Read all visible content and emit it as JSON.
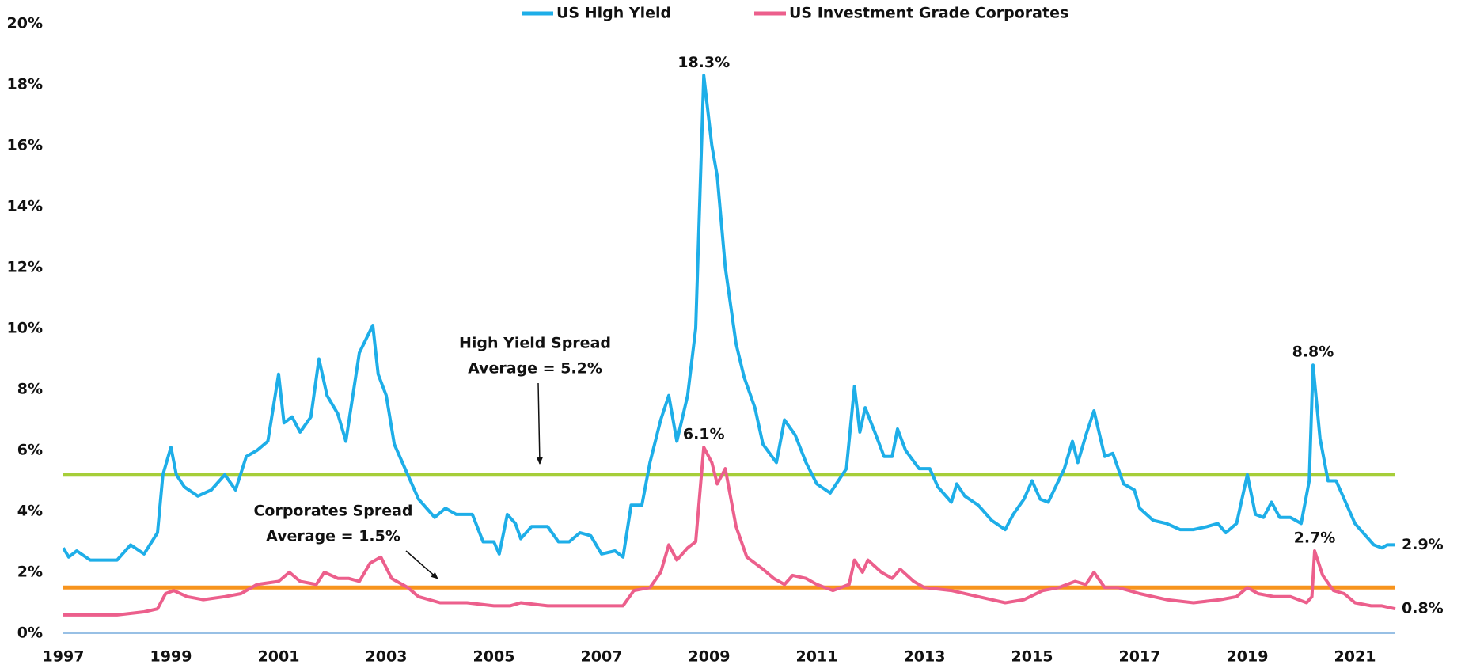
{
  "chart_data": {
    "type": "line",
    "xlim": [
      1997,
      2021.75
    ],
    "xticks": [
      1997,
      1999,
      2001,
      2003,
      2005,
      2007,
      2009,
      2011,
      2013,
      2015,
      2017,
      2019,
      2021
    ],
    "ylim": [
      0,
      20
    ],
    "yticks": [
      {
        "value": 0,
        "label": "0%"
      },
      {
        "value": 2,
        "label": "2%"
      },
      {
        "value": 4,
        "label": "4%"
      },
      {
        "value": 6,
        "label": "6%"
      },
      {
        "value": 8,
        "label": "8%"
      },
      {
        "value": 10,
        "label": "10%"
      },
      {
        "value": 12,
        "label": "12%"
      },
      {
        "value": 14,
        "label": "14%"
      },
      {
        "value": 16,
        "label": "16%"
      },
      {
        "value": 18,
        "label": "18%"
      },
      {
        "value": 20,
        "label": "20%"
      }
    ],
    "legend": "top",
    "series": [
      {
        "name": "US High Yield",
        "color": "#1eaee8",
        "x": [
          1997.0,
          1997.1,
          1997.25,
          1997.5,
          1997.75,
          1998.0,
          1998.25,
          1998.5,
          1998.75,
          1998.85,
          1999.0,
          1999.1,
          1999.25,
          1999.5,
          1999.75,
          2000.0,
          2000.2,
          2000.4,
          2000.6,
          2000.8,
          2001.0,
          2001.1,
          2001.25,
          2001.4,
          2001.6,
          2001.75,
          2001.9,
          2002.1,
          2002.25,
          2002.5,
          2002.75,
          2002.85,
          2003.0,
          2003.15,
          2003.4,
          2003.6,
          2003.9,
          2004.1,
          2004.3,
          2004.6,
          2004.8,
          2005.0,
          2005.1,
          2005.25,
          2005.4,
          2005.5,
          2005.7,
          2006.0,
          2006.2,
          2006.4,
          2006.6,
          2006.8,
          2007.0,
          2007.25,
          2007.4,
          2007.55,
          2007.75,
          2007.9,
          2008.1,
          2008.25,
          2008.4,
          2008.6,
          2008.75,
          2008.9,
          2009.05,
          2009.15,
          2009.3,
          2009.5,
          2009.65,
          2009.85,
          2010.0,
          2010.25,
          2010.4,
          2010.6,
          2010.8,
          2011.0,
          2011.25,
          2011.4,
          2011.55,
          2011.7,
          2011.8,
          2011.9,
          2012.1,
          2012.25,
          2012.4,
          2012.5,
          2012.65,
          2012.9,
          2013.1,
          2013.25,
          2013.5,
          2013.6,
          2013.75,
          2014.0,
          2014.25,
          2014.5,
          2014.65,
          2014.85,
          2015.0,
          2015.15,
          2015.3,
          2015.6,
          2015.75,
          2015.85,
          2016.0,
          2016.15,
          2016.35,
          2016.5,
          2016.7,
          2016.9,
          2017.0,
          2017.25,
          2017.5,
          2017.75,
          2018.0,
          2018.25,
          2018.45,
          2018.6,
          2018.8,
          2019.0,
          2019.15,
          2019.3,
          2019.45,
          2019.6,
          2019.8,
          2020.0,
          2020.15,
          2020.22,
          2020.35,
          2020.5,
          2020.65,
          2020.8,
          2021.0,
          2021.15,
          2021.35,
          2021.5,
          2021.6,
          2021.75
        ],
        "values": [
          2.8,
          2.5,
          2.7,
          2.4,
          2.4,
          2.4,
          2.9,
          2.6,
          3.3,
          5.2,
          6.1,
          5.2,
          4.8,
          4.5,
          4.7,
          5.2,
          4.7,
          5.8,
          6.0,
          6.3,
          8.5,
          6.9,
          7.1,
          6.6,
          7.1,
          9.0,
          7.8,
          7.2,
          6.3,
          9.2,
          10.1,
          8.5,
          7.8,
          6.2,
          5.2,
          4.4,
          3.8,
          4.1,
          3.9,
          3.9,
          3.0,
          3.0,
          2.6,
          3.9,
          3.6,
          3.1,
          3.5,
          3.5,
          3.0,
          3.0,
          3.3,
          3.2,
          2.6,
          2.7,
          2.5,
          4.2,
          4.2,
          5.6,
          7.0,
          7.8,
          6.3,
          7.8,
          10.0,
          18.3,
          16.0,
          15.0,
          12.0,
          9.5,
          8.4,
          7.4,
          6.2,
          5.6,
          7.0,
          6.5,
          5.6,
          4.9,
          4.6,
          5.0,
          5.4,
          8.1,
          6.6,
          7.4,
          6.5,
          5.8,
          5.8,
          6.7,
          6.0,
          5.4,
          5.4,
          4.8,
          4.3,
          4.9,
          4.5,
          4.2,
          3.7,
          3.4,
          3.9,
          4.4,
          5.0,
          4.4,
          4.3,
          5.4,
          6.3,
          5.6,
          6.5,
          7.3,
          5.8,
          5.9,
          4.9,
          4.7,
          4.1,
          3.7,
          3.6,
          3.4,
          3.4,
          3.5,
          3.6,
          3.3,
          3.6,
          5.2,
          3.9,
          3.8,
          4.3,
          3.8,
          3.8,
          3.6,
          5.0,
          8.8,
          6.4,
          5.0,
          5.0,
          4.4,
          3.6,
          3.3,
          2.9,
          2.8,
          2.9,
          2.9
        ],
        "value_labels": [
          null,
          null,
          null,
          null,
          null,
          null,
          null,
          null,
          null,
          null,
          null,
          null,
          null,
          null,
          null,
          null,
          null,
          null,
          null,
          null,
          null,
          null,
          null,
          null,
          null,
          null,
          null,
          null,
          null,
          null,
          null,
          null,
          null,
          null,
          null,
          null,
          null,
          null,
          null,
          null,
          null,
          null,
          null,
          null,
          null,
          null,
          null,
          null,
          null,
          null,
          null,
          null,
          null,
          null,
          null,
          null,
          null,
          null,
          null,
          null,
          null,
          null,
          null,
          "18.3%",
          null,
          null,
          null,
          null,
          null,
          null,
          null,
          null,
          null,
          null,
          null,
          null,
          null,
          null,
          null,
          null,
          null,
          null,
          null,
          null,
          null,
          null,
          null,
          null,
          null,
          null,
          null,
          null,
          null,
          null,
          null,
          null,
          null,
          null,
          null,
          null,
          null,
          null,
          null,
          null,
          null,
          null,
          null,
          null,
          null,
          null,
          null,
          null,
          null,
          null,
          null,
          null,
          null,
          null,
          null,
          null,
          null,
          null,
          null,
          null,
          null,
          null,
          null,
          "8.8%",
          null,
          null,
          null,
          null,
          null,
          null,
          null,
          null,
          null,
          "2.9%"
        ]
      },
      {
        "name": "US Investment Grade Corporates",
        "color": "#ec5f8c",
        "x": [
          1997.0,
          1997.5,
          1998.0,
          1998.5,
          1998.75,
          1998.9,
          1999.05,
          1999.3,
          1999.6,
          2000.0,
          2000.3,
          2000.6,
          2001.0,
          2001.2,
          2001.4,
          2001.7,
          2001.85,
          2002.1,
          2002.3,
          2002.5,
          2002.7,
          2002.9,
          2003.1,
          2003.4,
          2003.6,
          2004.0,
          2004.5,
          2005.0,
          2005.3,
          2005.5,
          2006.0,
          2006.5,
          2007.0,
          2007.4,
          2007.6,
          2007.9,
          2008.1,
          2008.25,
          2008.4,
          2008.6,
          2008.75,
          2008.9,
          2009.05,
          2009.15,
          2009.3,
          2009.5,
          2009.7,
          2010.0,
          2010.2,
          2010.4,
          2010.55,
          2010.8,
          2011.0,
          2011.3,
          2011.6,
          2011.7,
          2011.85,
          2011.95,
          2012.2,
          2012.4,
          2012.55,
          2012.8,
          2013.0,
          2013.5,
          2014.0,
          2014.5,
          2014.85,
          2015.2,
          2015.5,
          2015.8,
          2016.0,
          2016.15,
          2016.35,
          2016.6,
          2017.0,
          2017.5,
          2018.0,
          2018.5,
          2018.8,
          2019.0,
          2019.2,
          2019.5,
          2019.8,
          2020.1,
          2020.2,
          2020.25,
          2020.4,
          2020.6,
          2020.8,
          2021.0,
          2021.3,
          2021.5,
          2021.75
        ],
        "values": [
          0.6,
          0.6,
          0.6,
          0.7,
          0.8,
          1.3,
          1.4,
          1.2,
          1.1,
          1.2,
          1.3,
          1.6,
          1.7,
          2.0,
          1.7,
          1.6,
          2.0,
          1.8,
          1.8,
          1.7,
          2.3,
          2.5,
          1.8,
          1.5,
          1.2,
          1.0,
          1.0,
          0.9,
          0.9,
          1.0,
          0.9,
          0.9,
          0.9,
          0.9,
          1.4,
          1.5,
          2.0,
          2.9,
          2.4,
          2.8,
          3.0,
          6.1,
          5.6,
          4.9,
          5.4,
          3.5,
          2.5,
          2.1,
          1.8,
          1.6,
          1.9,
          1.8,
          1.6,
          1.4,
          1.6,
          2.4,
          2.0,
          2.4,
          2.0,
          1.8,
          2.1,
          1.7,
          1.5,
          1.4,
          1.2,
          1.0,
          1.1,
          1.4,
          1.5,
          1.7,
          1.6,
          2.0,
          1.5,
          1.5,
          1.3,
          1.1,
          1.0,
          1.1,
          1.2,
          1.5,
          1.3,
          1.2,
          1.2,
          1.0,
          1.2,
          2.7,
          1.9,
          1.4,
          1.3,
          1.0,
          0.9,
          0.9,
          0.8
        ],
        "value_labels": [
          null,
          null,
          null,
          null,
          null,
          null,
          null,
          null,
          null,
          null,
          null,
          null,
          null,
          null,
          null,
          null,
          null,
          null,
          null,
          null,
          null,
          null,
          null,
          null,
          null,
          null,
          null,
          null,
          null,
          null,
          null,
          null,
          null,
          null,
          null,
          null,
          null,
          null,
          null,
          null,
          null,
          "6.1%",
          null,
          null,
          null,
          null,
          null,
          null,
          null,
          null,
          null,
          null,
          null,
          null,
          null,
          null,
          null,
          null,
          null,
          null,
          null,
          null,
          null,
          null,
          null,
          null,
          null,
          null,
          null,
          null,
          null,
          null,
          null,
          null,
          null,
          null,
          null,
          null,
          null,
          null,
          null,
          null,
          null,
          null,
          null,
          "2.7%",
          null,
          null,
          null,
          null,
          null,
          null,
          "0.8%"
        ]
      }
    ],
    "reference_lines": [
      {
        "value": 5.2,
        "color": "#a6ce39",
        "label": [
          "High Yield Spread",
          "Average =  5.2%"
        ]
      },
      {
        "value": 1.5,
        "color": "#f7941d",
        "label": [
          "Corporates Spread",
          "Average =  1.5%"
        ]
      }
    ]
  }
}
